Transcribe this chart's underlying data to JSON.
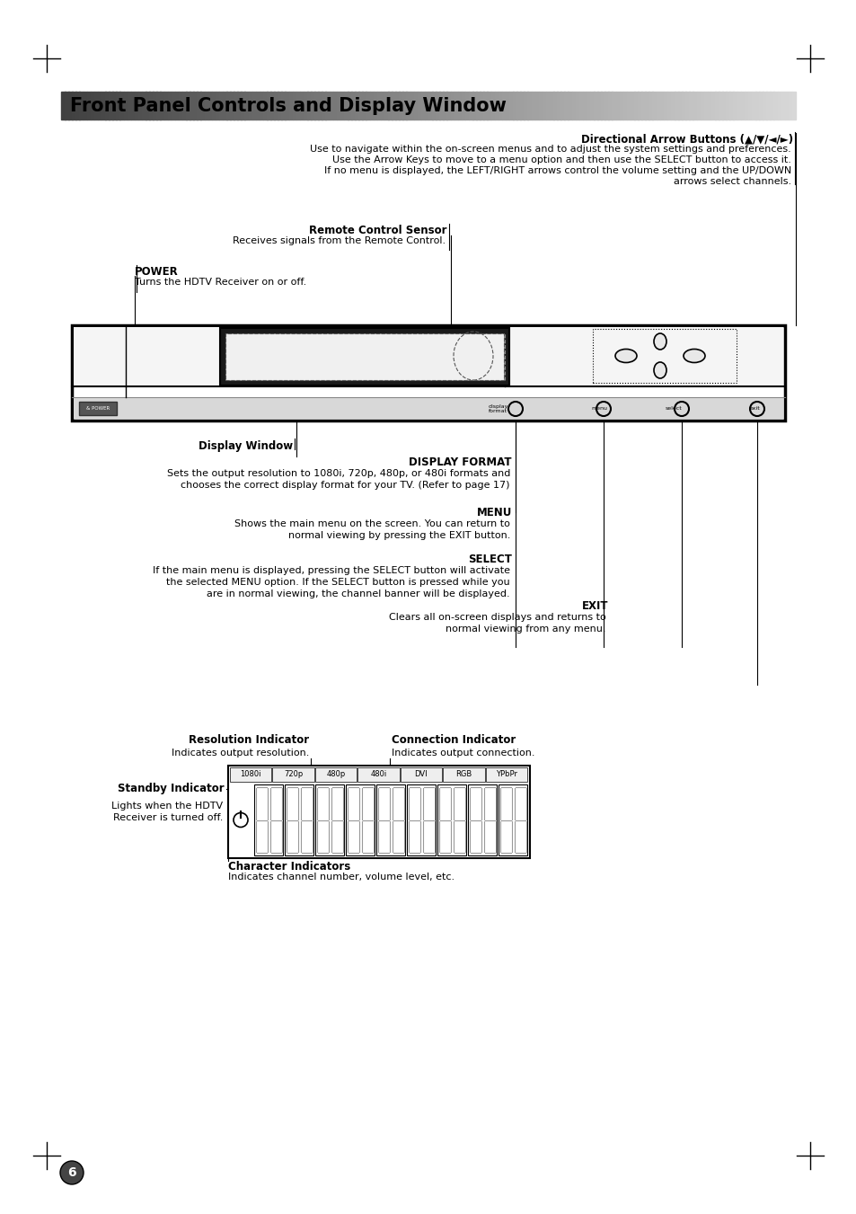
{
  "title": "Front Panel Controls and Display Window",
  "bg_color": "#ffffff",
  "page_number": "6",
  "sections": {
    "directional_arrow": {
      "label": "Directional Arrow Buttons (▲/▼/◄/►)",
      "desc_lines": [
        "Use to navigate within the on-screen menus and to adjust the system settings and preferences.",
        "Use the Arrow Keys to move to a menu option and then use the SELECT button to access it.",
        "If no menu is displayed, the LEFT/RIGHT arrows control the volume setting and the UP/DOWN",
        "arrows select channels."
      ]
    },
    "remote_control": {
      "label": "Remote Control Sensor",
      "desc": "Receives signals from the Remote Control."
    },
    "power": {
      "label": "POWER",
      "desc": "Turns the HDTV Receiver on or off."
    },
    "display_window": {
      "label": "Display Window"
    },
    "display_format": {
      "label": "DISPLAY FORMAT",
      "desc_lines": [
        "Sets the output resolution to 1080i, 720p, 480p, or 480i formats and",
        "chooses the correct display format for your TV. (Refer to page 17)"
      ]
    },
    "menu": {
      "label": "MENU",
      "desc_lines": [
        "Shows the main menu on the screen. You can return to",
        "normal viewing by pressing the EXIT button."
      ]
    },
    "select": {
      "label": "SELECT",
      "desc_lines": [
        "If the main menu is displayed, pressing the SELECT button will activate",
        "the selected MENU option. If the SELECT button is pressed while you",
        "are in normal viewing, the channel banner will be displayed."
      ]
    },
    "exit": {
      "label": "EXIT",
      "desc_lines": [
        "Clears all on-screen displays and returns to",
        "normal viewing from any menu."
      ]
    },
    "resolution_indicator": {
      "label": "Resolution Indicator",
      "desc": "Indicates output resolution."
    },
    "connection_indicator": {
      "label": "Connection Indicator",
      "desc": "Indicates output connection."
    },
    "standby_indicator": {
      "label": "Standby Indicator",
      "desc_lines": [
        "Lights when the HDTV",
        "Receiver is turned off."
      ]
    },
    "character_indicators": {
      "label": "Character Indicators",
      "desc": "Indicates channel number, volume level, etc."
    }
  }
}
